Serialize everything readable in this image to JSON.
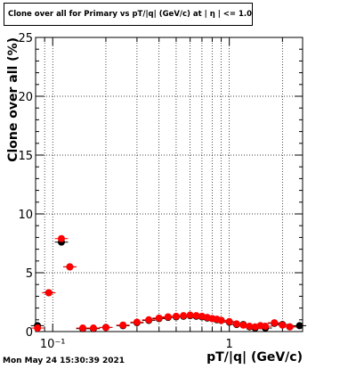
{
  "chart_data": {
    "type": "scatter",
    "title": "Clone  over all for Primary vs pT/|q| (GeV/c) at |  η | <= 1.0",
    "xlabel": "pT/|q| (GeV/c)",
    "ylabel": "Clone  over all (%)",
    "xscale": "log",
    "xlim": [
      0.08,
      2.6
    ],
    "ylim": [
      0,
      25
    ],
    "grid": true,
    "y_ticks": [
      0,
      5,
      10,
      15,
      20,
      25
    ],
    "y_tick_labels": [
      "0",
      "5",
      "10",
      "15",
      "20",
      "25"
    ],
    "x_major_ticks": [
      0.1,
      1
    ],
    "x_tick_labels": [
      "10⁻¹",
      "1"
    ],
    "series": [
      {
        "color": "#000000",
        "marker": "circle",
        "x": [
          0.082,
          0.095,
          0.112,
          0.125,
          0.148,
          0.17,
          0.2,
          0.25,
          0.3,
          0.35,
          0.4,
          0.45,
          0.5,
          0.55,
          0.6,
          0.65,
          0.7,
          0.75,
          0.8,
          0.85,
          0.9,
          1.0,
          1.1,
          1.2,
          1.3,
          1.4,
          1.5,
          1.6,
          1.8,
          2.0,
          2.2,
          2.5
        ],
        "y": [
          0.5,
          3.3,
          7.6,
          5.5,
          0.25,
          0.25,
          0.35,
          0.5,
          0.75,
          0.95,
          1.1,
          1.2,
          1.25,
          1.3,
          1.35,
          1.3,
          1.25,
          1.15,
          1.1,
          1.0,
          0.95,
          0.8,
          0.6,
          0.6,
          0.4,
          0.3,
          0.5,
          0.3,
          0.7,
          0.6,
          0.4,
          0.5
        ]
      },
      {
        "color": "#ff0000",
        "marker": "circle",
        "x": [
          0.082,
          0.095,
          0.112,
          0.125,
          0.148,
          0.17,
          0.2,
          0.25,
          0.3,
          0.35,
          0.4,
          0.45,
          0.5,
          0.55,
          0.6,
          0.65,
          0.7,
          0.75,
          0.8,
          0.85,
          0.9,
          1.0,
          1.1,
          1.2,
          1.3,
          1.4,
          1.5,
          1.6,
          1.8,
          2.0,
          2.2
        ],
        "y": [
          0.3,
          3.3,
          7.9,
          5.5,
          0.3,
          0.3,
          0.35,
          0.55,
          0.8,
          1.0,
          1.15,
          1.25,
          1.3,
          1.35,
          1.4,
          1.35,
          1.3,
          1.2,
          1.1,
          1.05,
          0.95,
          0.85,
          0.65,
          0.55,
          0.45,
          0.4,
          0.5,
          0.45,
          0.75,
          0.55,
          0.4
        ]
      }
    ]
  },
  "timestamp": "Mon May 24 15:30:39 2021"
}
